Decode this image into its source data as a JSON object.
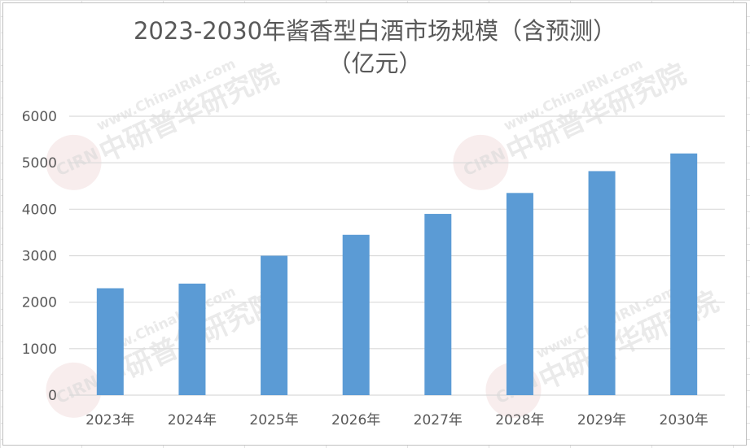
{
  "chart_data": {
    "type": "bar",
    "title_lines": [
      "2023-2030年酱香型白酒市场规模（含预测）",
      "（亿元）"
    ],
    "categories": [
      "2023年",
      "2024年",
      "2025年",
      "2026年",
      "2027年",
      "2028年",
      "2029年",
      "2030年"
    ],
    "values": [
      2300,
      2400,
      3000,
      3450,
      3900,
      4350,
      4820,
      5200
    ],
    "ylim": [
      0,
      6000
    ],
    "yticks": [
      "0",
      "1000",
      "2000",
      "3000",
      "4000",
      "5000",
      "6000"
    ],
    "bar_color": "#5B9BD5",
    "grid": true,
    "legend": "none"
  },
  "watermark": {
    "logo": "CIRN",
    "url": "www.ChinaIRN.com",
    "brand": "中研普华研究院",
    "color": "#d9d9d9"
  }
}
